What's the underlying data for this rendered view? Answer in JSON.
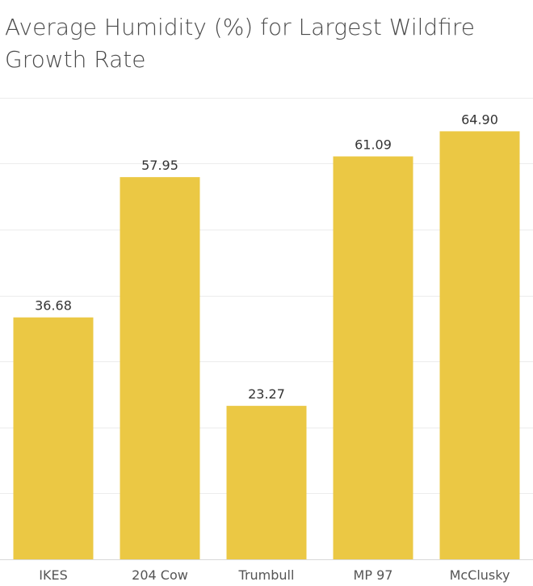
{
  "header": {
    "title": "Average Humidity (%)  for Largest Wildfire Growth Rate"
  },
  "colors": {
    "bar": "#EBC844",
    "grid": "#ececec",
    "axis": "#d8d8d8"
  },
  "chart_data": {
    "type": "bar",
    "title": "Average Humidity (%)  for Largest Wildfire Growth Rate",
    "xlabel": "",
    "ylabel": "",
    "categories": [
      "IKES",
      "204 Cow",
      "Trumbull",
      "MP 97",
      "McClusky"
    ],
    "values": [
      36.68,
      57.95,
      23.27,
      61.09,
      64.9
    ],
    "value_labels": [
      "36.68",
      "57.95",
      "23.27",
      "61.09",
      "64.90"
    ],
    "ylim": [
      0,
      70
    ],
    "grid": true,
    "legend": "none"
  }
}
